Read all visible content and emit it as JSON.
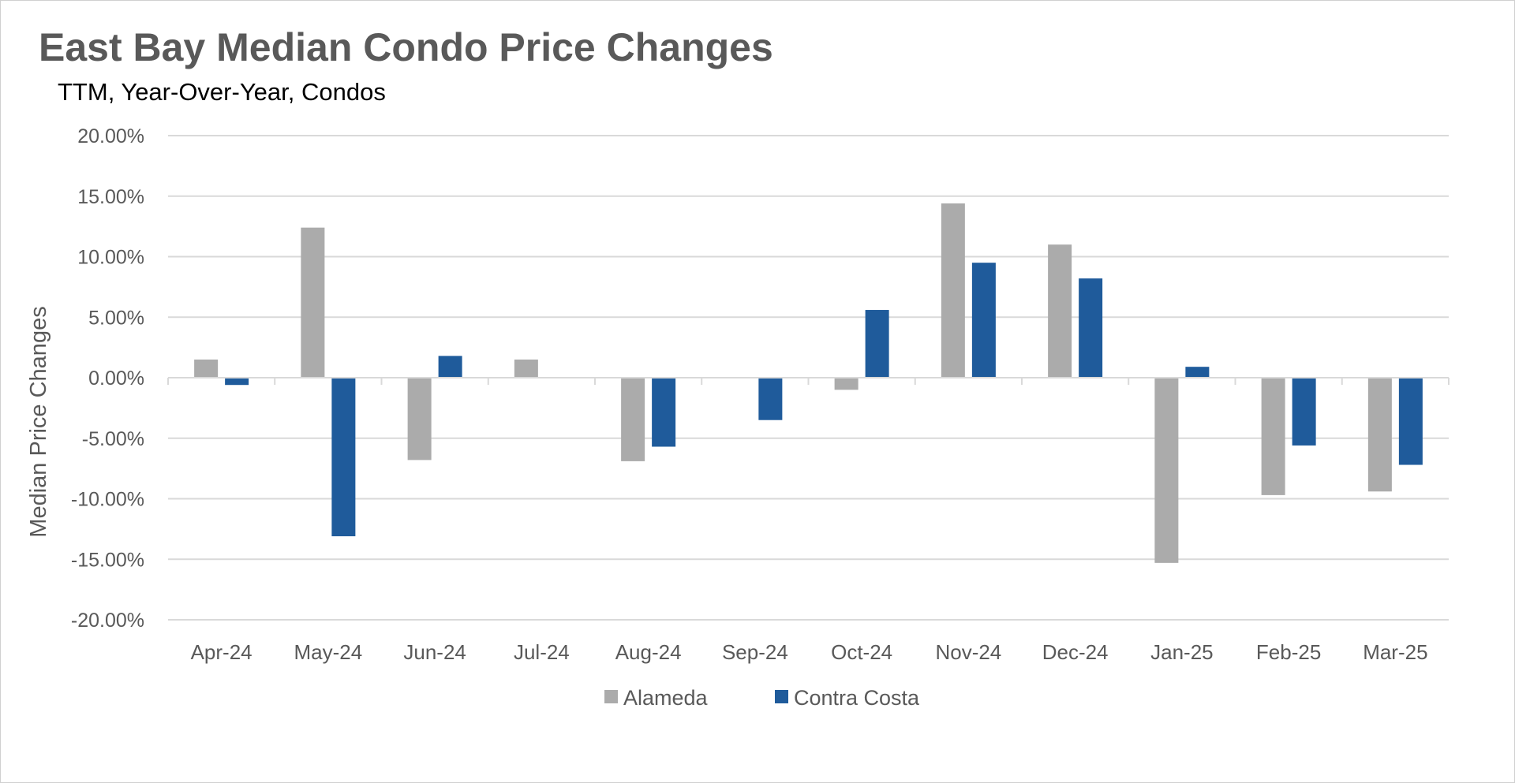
{
  "chart_data": {
    "type": "bar",
    "title": "East Bay Median Condo Price Changes",
    "subtitle": "TTM, Year-Over-Year, Condos",
    "xlabel": "",
    "ylabel": "Median Price Changes",
    "ylim": [
      -20,
      20
    ],
    "yticks": [
      20,
      15,
      10,
      5,
      0,
      -5,
      -10,
      -15,
      -20
    ],
    "ytick_labels": [
      "20.00%",
      "15.00%",
      "10.00%",
      "5.00%",
      "0.00%",
      "-5.00%",
      "-10.00%",
      "-15.00%",
      "-20.00%"
    ],
    "categories": [
      "Apr-24",
      "May-24",
      "Jun-24",
      "Jul-24",
      "Aug-24",
      "Sep-24",
      "Oct-24",
      "Nov-24",
      "Dec-24",
      "Jan-25",
      "Feb-25",
      "Mar-25"
    ],
    "series": [
      {
        "name": "Alameda",
        "color": "#ababab",
        "values": [
          1.5,
          12.4,
          -6.8,
          1.5,
          -6.9,
          0.0,
          -1.0,
          14.4,
          11.0,
          -15.3,
          -9.7,
          -9.4
        ]
      },
      {
        "name": "Contra Costa",
        "color": "#1f5b9b",
        "values": [
          -0.6,
          -13.1,
          1.8,
          0.0,
          -5.7,
          -3.5,
          5.6,
          9.5,
          8.2,
          0.9,
          -5.6,
          -7.2
        ]
      }
    ],
    "grid": true,
    "legend_position": "bottom"
  }
}
